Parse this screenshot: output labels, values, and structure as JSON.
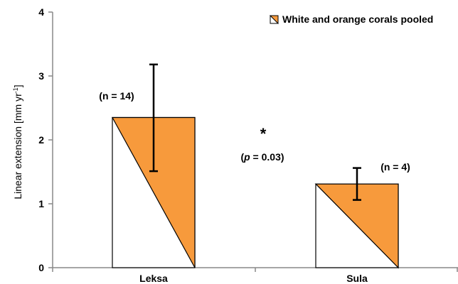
{
  "chart_data": {
    "type": "bar",
    "categories": [
      "Leksa",
      "Sula"
    ],
    "series": [
      {
        "name": "White and orange corals pooled",
        "values": [
          2.35,
          1.31
        ],
        "error_upper": [
          3.18,
          1.56
        ],
        "error_lower": [
          1.51,
          1.06
        ]
      }
    ],
    "ylabel": "Linear extension [mm yr",
    "ylabel_superscript": "-1",
    "ylabel_close": "]",
    "ylim": [
      0,
      4
    ],
    "yticks": [
      0,
      1,
      2,
      3,
      4
    ],
    "legend_position": "top-right",
    "annotations": {
      "n_labels": [
        "(n = 14)",
        "(n = 4)"
      ],
      "significance_star": "*",
      "p_open": "(",
      "p_symbol": "p",
      "p_rest": " = 0.03)"
    },
    "colors": {
      "fill": "#F79A3C",
      "stroke": "#000000",
      "background": "#FFFFFF"
    }
  }
}
